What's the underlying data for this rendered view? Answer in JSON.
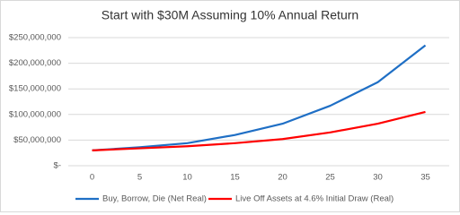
{
  "chart_data": {
    "type": "line",
    "title": "Start with $30M Assuming 10% Annual Return",
    "categories": [
      "0",
      "5",
      "10",
      "15",
      "20",
      "25",
      "30",
      "35"
    ],
    "series": [
      {
        "name": "Buy, Borrow, Die (Net Real)",
        "color": "#1f6fc5",
        "values": [
          30000000,
          36000000,
          44000000,
          60000000,
          82000000,
          117000000,
          163000000,
          235000000
        ]
      },
      {
        "name": "Live Off Assets at 4.6% Initial Draw (Real)",
        "color": "#ff0000",
        "values": [
          30000000,
          34000000,
          38000000,
          44000000,
          52000000,
          65000000,
          82000000,
          105000000
        ]
      }
    ],
    "ylim": [
      0,
      250000000
    ],
    "yticks": [
      {
        "value": 0,
        "label": "$-"
      },
      {
        "value": 50000000,
        "label": "$50,000,000"
      },
      {
        "value": 100000000,
        "label": "$100,000,000"
      },
      {
        "value": 150000000,
        "label": "$150,000,000"
      },
      {
        "value": 200000000,
        "label": "$200,000,000"
      },
      {
        "value": 250000000,
        "label": "$250,000,000"
      }
    ],
    "grid": true,
    "legend": "bottom"
  }
}
